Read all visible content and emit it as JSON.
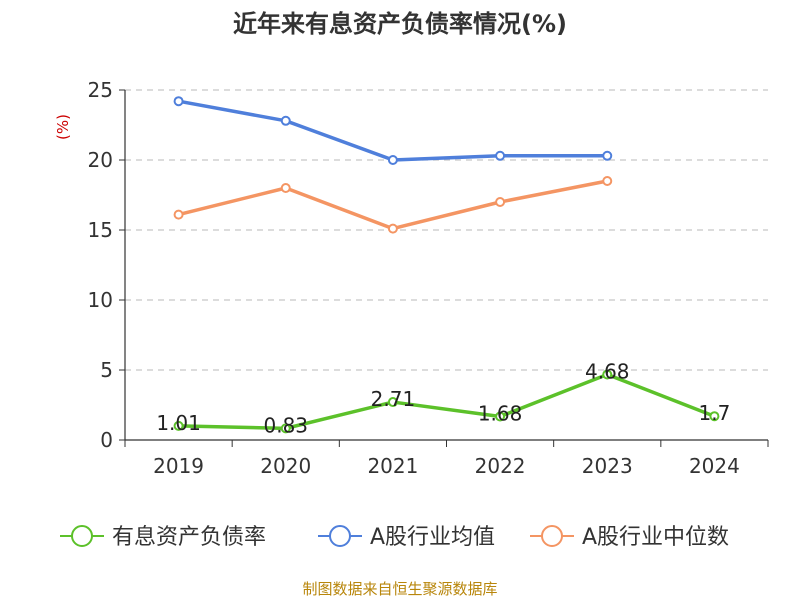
{
  "chart_data": {
    "type": "line",
    "title": "近年来有息资产负债率情况(%)",
    "ylabel": "(%)",
    "xlabel": "",
    "categories": [
      "2019",
      "2020",
      "2021",
      "2022",
      "2023",
      "2024"
    ],
    "ylim": [
      0,
      25
    ],
    "yticks": [
      "0",
      "5",
      "10",
      "15",
      "20",
      "25"
    ],
    "grid": true,
    "legend_position": "bottom",
    "series": [
      {
        "name": "有息资产负债率",
        "color": "#5cc12a",
        "values": [
          1.01,
          0.83,
          2.71,
          1.68,
          4.68,
          1.7
        ],
        "labels": [
          "1.01",
          "0.83",
          "2.71",
          "1.68",
          "4.68",
          "1.7"
        ]
      },
      {
        "name": "A股行业均值",
        "color": "#4f7fdb",
        "values": [
          24.2,
          22.8,
          20.0,
          20.3,
          20.3,
          null
        ]
      },
      {
        "name": "A股行业中位数",
        "color": "#f49563",
        "values": [
          16.1,
          18.0,
          15.1,
          17.0,
          18.5,
          null
        ]
      }
    ],
    "source": "制图数据来自恒生聚源数据库"
  }
}
